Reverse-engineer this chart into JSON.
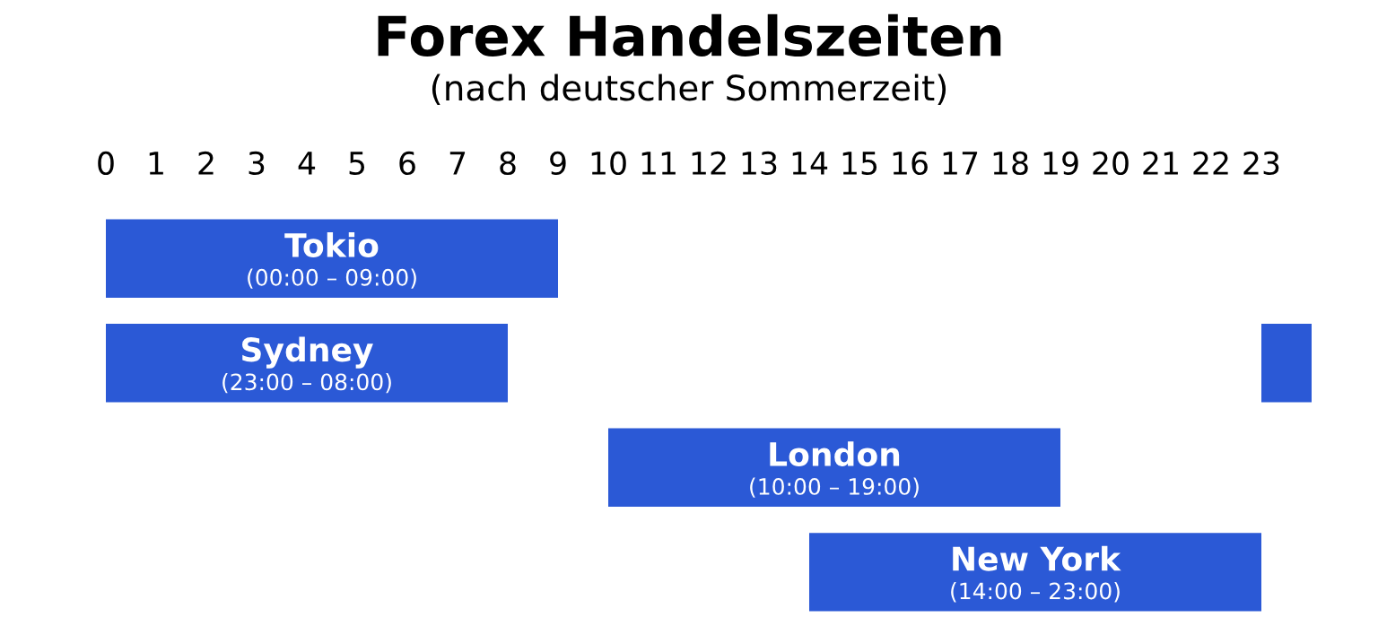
{
  "chart_data": {
    "type": "bar",
    "orientation": "horizontal",
    "title": "Forex Handelszeiten",
    "subtitle": "(nach deutscher Sommerzeit)",
    "categories": [
      "Tokio",
      "Sydney",
      "London",
      "New York"
    ],
    "series": [
      {
        "color": "#2b59d6",
        "base": [
          0,
          0,
          10,
          14
        ],
        "values": [
          9,
          8,
          9,
          9
        ],
        "value_labels": [
          "(00:00 – 09:00)",
          "(23:00 – 08:00)",
          "(10:00 – 19:00)",
          "(14:00 – 23:00)"
        ]
      },
      {
        "color": "#2b59d6",
        "base": [
          null,
          23,
          null,
          null
        ],
        "values": [
          null,
          1,
          null,
          null
        ]
      }
    ],
    "xlim": [
      -0.25,
      24
    ],
    "xticks": [
      0,
      1,
      2,
      3,
      4,
      5,
      6,
      7,
      8,
      9,
      10,
      11,
      12,
      13,
      14,
      15,
      16,
      17,
      18,
      19,
      20,
      21,
      22,
      23
    ],
    "tick_labels": "x",
    "grid": false
  }
}
